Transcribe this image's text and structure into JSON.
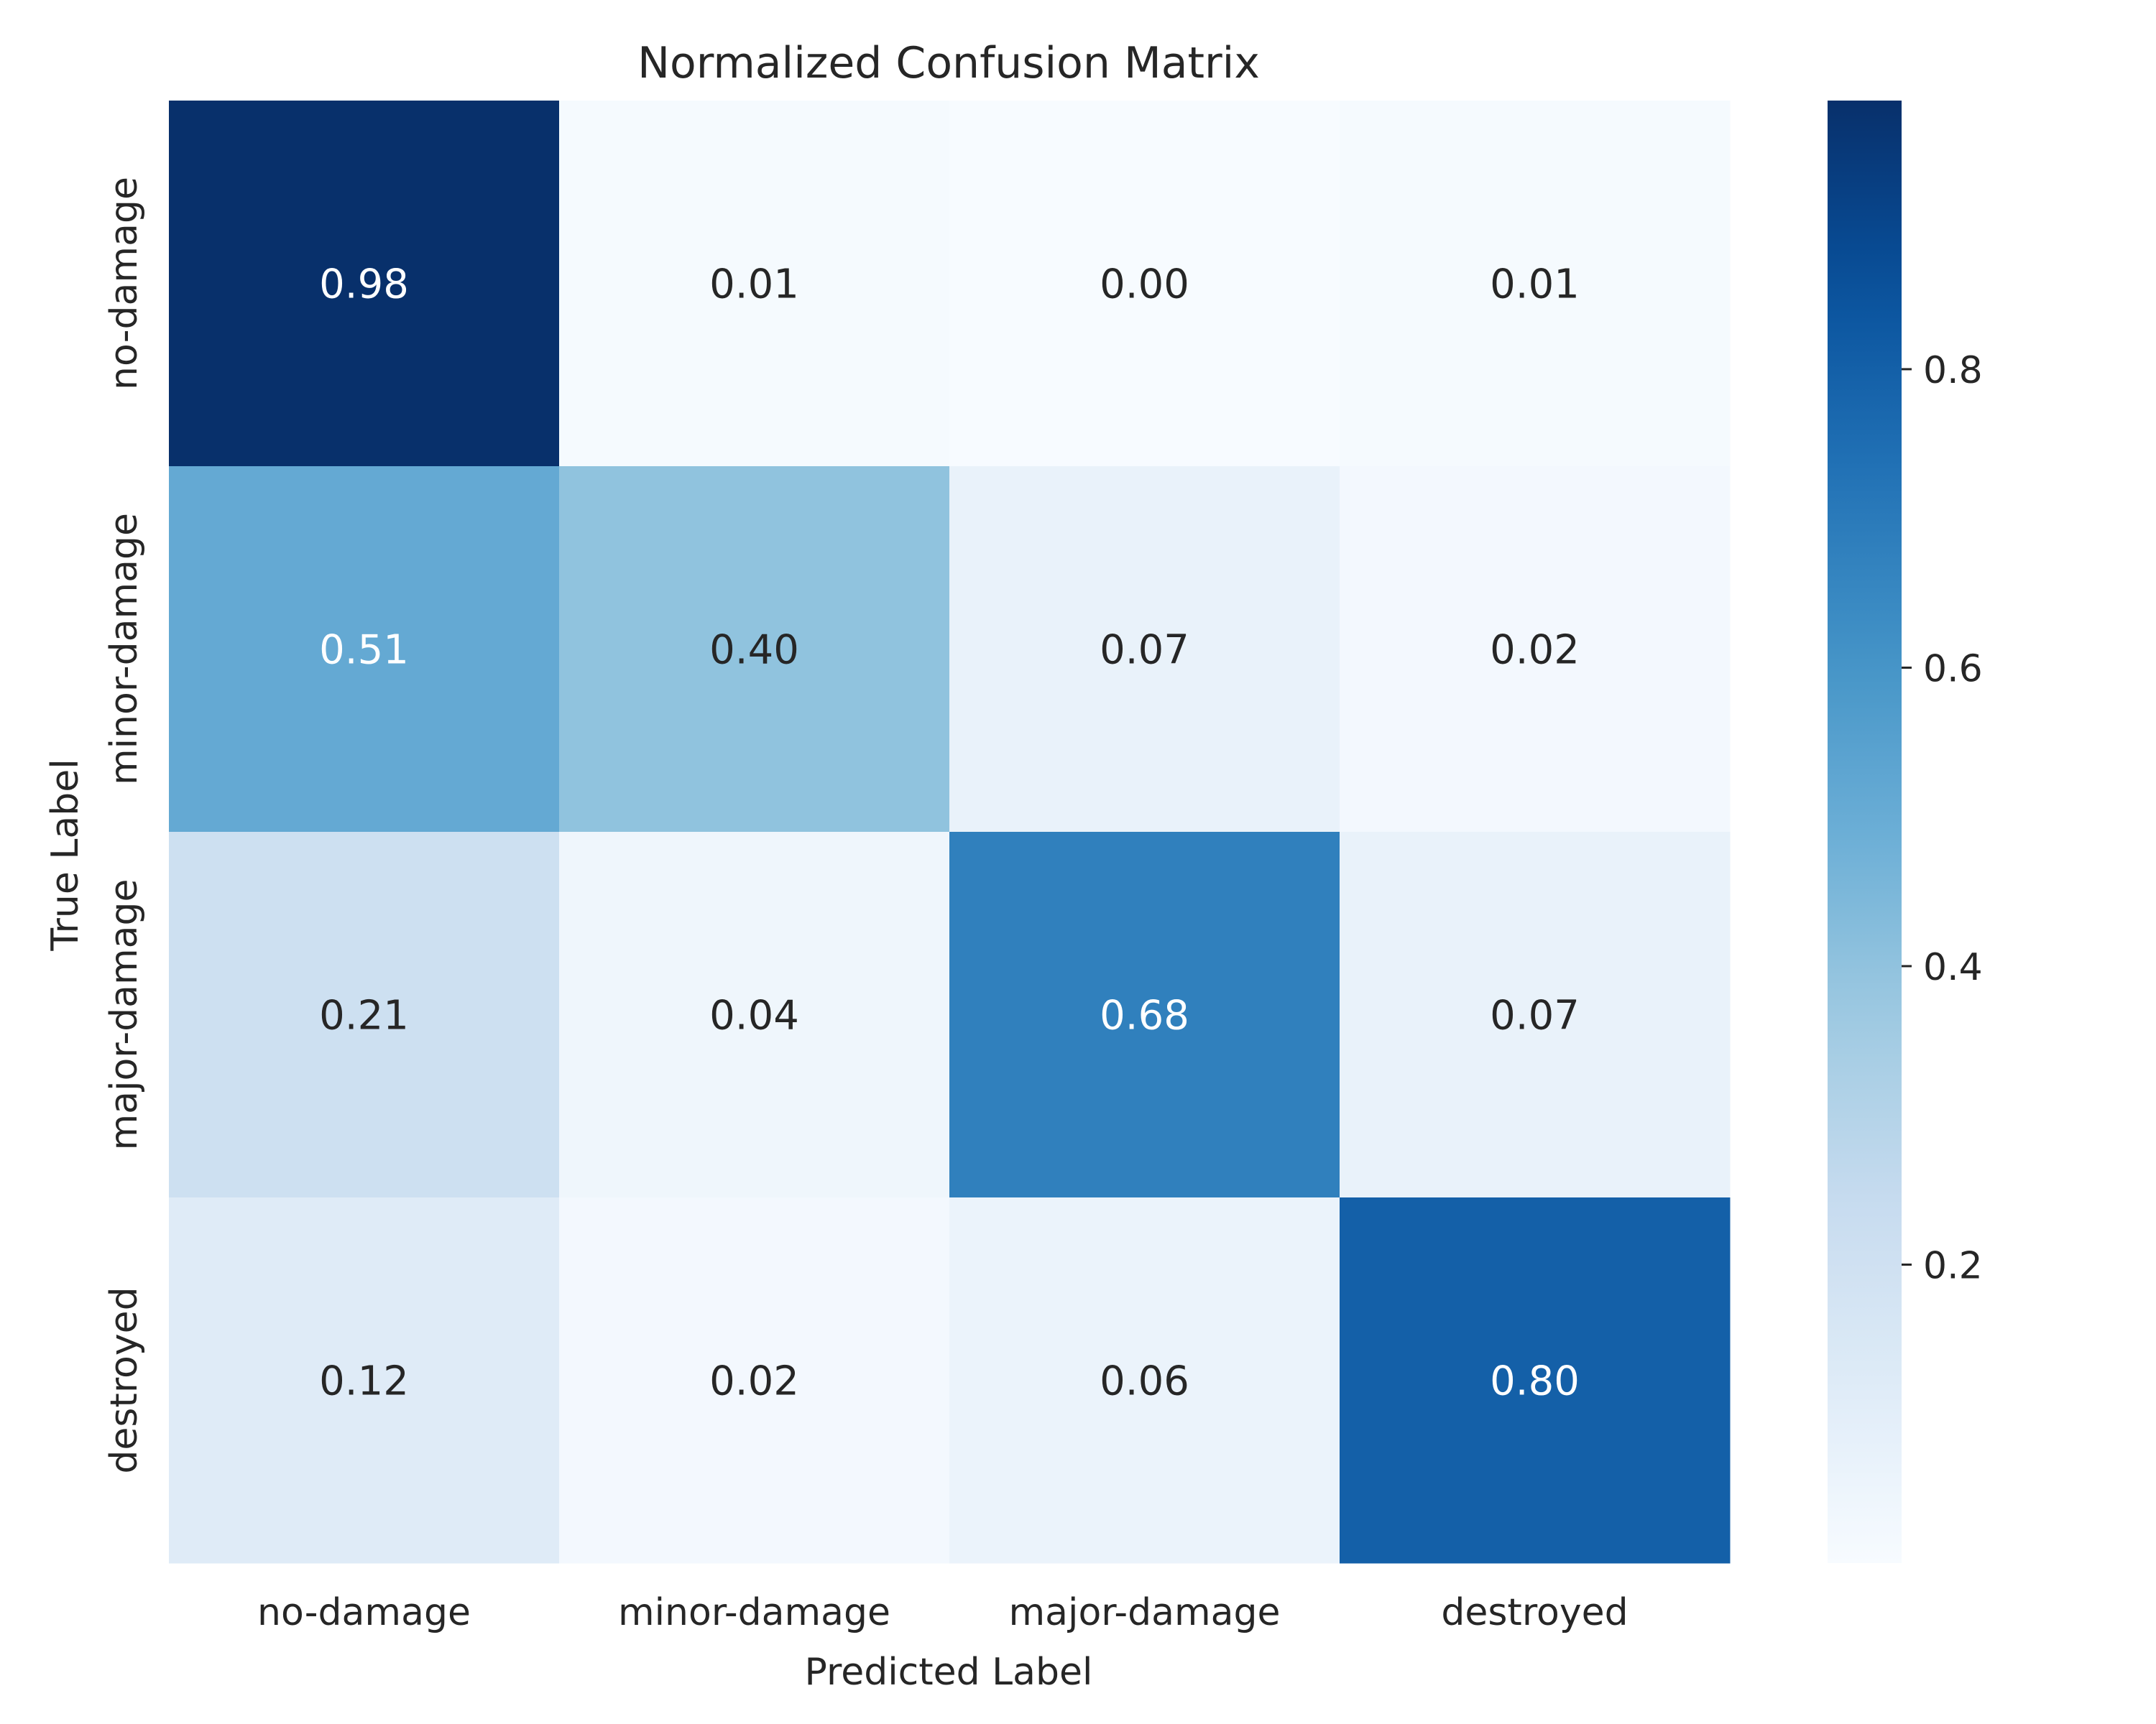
{
  "chart_data": {
    "type": "heatmap",
    "title": "Normalized Confusion Matrix",
    "xlabel": "Predicted Label",
    "ylabel": "True Label",
    "x_categories": [
      "no-damage",
      "minor-damage",
      "major-damage",
      "destroyed"
    ],
    "y_categories": [
      "no-damage",
      "minor-damage",
      "major-damage",
      "destroyed"
    ],
    "values": [
      [
        0.98,
        0.01,
        0.0,
        0.01
      ],
      [
        0.51,
        0.4,
        0.07,
        0.02
      ],
      [
        0.21,
        0.04,
        0.68,
        0.07
      ],
      [
        0.12,
        0.02,
        0.06,
        0.8
      ]
    ],
    "value_labels": [
      [
        "0.98",
        "0.01",
        "0.00",
        "0.01"
      ],
      [
        "0.51",
        "0.40",
        "0.07",
        "0.02"
      ],
      [
        "0.21",
        "0.04",
        "0.68",
        "0.07"
      ],
      [
        "0.12",
        "0.02",
        "0.06",
        "0.80"
      ]
    ],
    "colormap": "Blues",
    "color_range": [
      0.0,
      0.98
    ],
    "colorbar": {
      "ticks": [
        0.2,
        0.4,
        0.6,
        0.8
      ],
      "tick_labels": [
        "0.2",
        "0.4",
        "0.6",
        "0.8"
      ]
    },
    "text_color_dark": "#262626",
    "text_color_light": "#ffffff"
  }
}
